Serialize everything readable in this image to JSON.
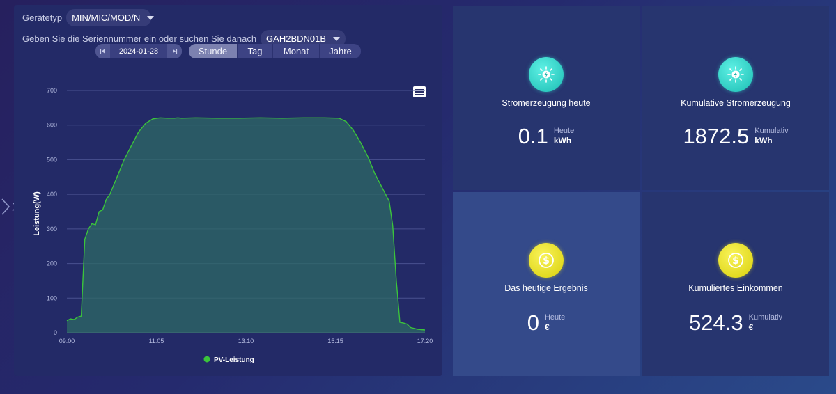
{
  "filters": {
    "device_type_label": "Gerätetyp",
    "device_type_value": "MIN/MIC/MOD/N",
    "serial_label": "Geben Sie die Seriennummer ein oder suchen Sie danach",
    "serial_value": "GAH2BDN01B",
    "date": "2024-01-28",
    "prev_icon": "step-back-icon",
    "next_icon": "step-forward-icon"
  },
  "range_tabs": [
    {
      "label": "Stunde",
      "active": true
    },
    {
      "label": "Tag",
      "active": false
    },
    {
      "label": "Monat",
      "active": false
    },
    {
      "label": "Jahre",
      "active": false
    }
  ],
  "chart_data": {
    "type": "area",
    "ylabel": "Leistung(W)",
    "xlabel": "",
    "ylim": [
      0,
      700
    ],
    "yticks": [
      0,
      100,
      200,
      300,
      400,
      500,
      600,
      700
    ],
    "xticks": [
      "09:00",
      "11:05",
      "13:10",
      "15:15",
      "17:20"
    ],
    "grid": true,
    "legend_position": "bottom-center",
    "color": "#3bc43b",
    "fill": "#2e6a64",
    "series": [
      {
        "name": "PV-Leistung",
        "x": [
          "09:00",
          "09:05",
          "09:10",
          "09:15",
          "09:20",
          "09:25",
          "09:30",
          "09:35",
          "09:40",
          "09:45",
          "09:50",
          "09:55",
          "10:00",
          "10:10",
          "10:20",
          "10:30",
          "10:40",
          "10:50",
          "11:00",
          "11:10",
          "11:20",
          "11:30",
          "11:35",
          "11:40",
          "12:00",
          "12:30",
          "13:00",
          "13:30",
          "14:00",
          "14:30",
          "15:00",
          "15:20",
          "15:30",
          "15:40",
          "15:50",
          "16:00",
          "16:10",
          "16:20",
          "16:30",
          "16:35",
          "16:40",
          "16:45",
          "16:50",
          "16:55",
          "17:00",
          "17:10",
          "17:20"
        ],
        "values": [
          35,
          40,
          38,
          45,
          48,
          270,
          300,
          315,
          312,
          350,
          355,
          385,
          400,
          450,
          500,
          540,
          580,
          605,
          618,
          621,
          620,
          620,
          621,
          620,
          621,
          620,
          620,
          621,
          620,
          621,
          621,
          620,
          610,
          585,
          550,
          510,
          460,
          420,
          380,
          310,
          150,
          30,
          28,
          25,
          15,
          10,
          8
        ]
      }
    ]
  },
  "cards": [
    {
      "title": "Stromerzeugung heute",
      "value": "0.1",
      "unit_sub": "Heute",
      "unit": "kWh",
      "icon": "solar-panel-icon",
      "color": "#2cd2c8"
    },
    {
      "title": "Kumulative Stromerzeugung",
      "value": "1872.5",
      "unit_sub": "Kumulativ",
      "unit": "kWh",
      "icon": "solar-panel-icon",
      "color": "#2cd2c8"
    },
    {
      "title": "Das heutige Ergebnis",
      "value": "0",
      "unit_sub": "Heute",
      "unit": "€",
      "icon": "dollar-coin-icon",
      "color": "#e8e01a"
    },
    {
      "title": "Kumuliertes Einkommen",
      "value": "524.3",
      "unit_sub": "Kumulativ",
      "unit": "€",
      "icon": "dollar-coin-icon",
      "color": "#e8e01a"
    }
  ]
}
